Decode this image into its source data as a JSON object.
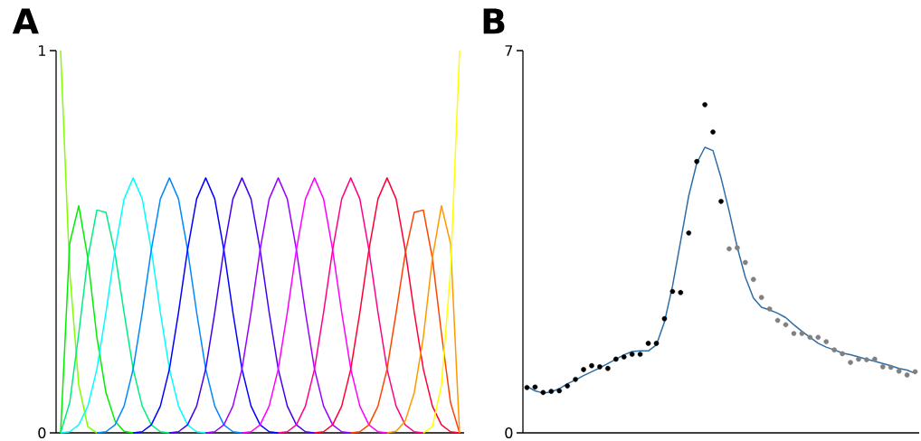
{
  "chart_data": [
    {
      "type": "line",
      "title": "A",
      "tick_labels": "y",
      "ylim": [
        0,
        1
      ],
      "yticks": [
        0,
        1
      ],
      "categories": [
        null,
        null,
        null,
        null,
        null,
        null,
        null,
        null,
        null,
        null,
        null,
        null,
        null,
        null,
        null,
        null,
        null,
        null,
        null,
        null,
        null,
        null,
        null,
        null,
        null,
        null,
        null,
        null,
        null,
        null,
        null,
        null,
        null,
        null,
        null,
        null,
        null,
        null,
        null,
        null,
        null,
        null,
        null,
        null,
        null
      ],
      "series": [
        {
          "color": "#80ff00",
          "values": [
            1,
            0.422,
            0.125,
            0.016,
            0,
            null,
            null,
            null,
            null,
            null,
            null,
            null,
            null,
            null,
            null,
            null,
            null,
            null,
            null,
            null,
            null,
            null,
            null,
            null,
            null,
            null,
            null,
            null,
            null,
            null,
            null,
            null,
            null,
            null,
            null,
            null,
            null,
            null,
            null,
            null,
            null,
            null,
            null,
            null,
            null
          ]
        },
        {
          "color": "#00ee00",
          "values": [
            0,
            0.496,
            0.594,
            0.457,
            0.25,
            0.105,
            0.031,
            0.004,
            0,
            null,
            null,
            null,
            null,
            null,
            null,
            null,
            null,
            null,
            null,
            null,
            null,
            null,
            null,
            null,
            null,
            null,
            null,
            null,
            null,
            null,
            null,
            null,
            null,
            null,
            null,
            null,
            null,
            null,
            null,
            null,
            null,
            null,
            null,
            null,
            null
          ]
        },
        {
          "color": "#00ee80",
          "values": [
            0,
            0.079,
            0.26,
            0.457,
            0.583,
            0.577,
            0.469,
            0.314,
            0.167,
            0.07,
            0.021,
            0.003,
            0,
            null,
            null,
            null,
            null,
            null,
            null,
            null,
            null,
            null,
            null,
            null,
            null,
            null,
            null,
            null,
            null,
            null,
            null,
            null,
            null,
            null,
            null,
            null,
            null,
            null,
            null,
            null,
            null,
            null,
            null,
            null,
            null
          ]
        },
        {
          "color": "#00ffff",
          "values": [
            0,
            0.003,
            0.021,
            0.07,
            0.167,
            0.315,
            0.479,
            0.612,
            0.667,
            0.612,
            0.479,
            0.315,
            0.167,
            0.07,
            0.021,
            0.003,
            0,
            null,
            null,
            null,
            null,
            null,
            null,
            null,
            null,
            null,
            null,
            null,
            null,
            null,
            null,
            null,
            null,
            null,
            null,
            null,
            null,
            null,
            null,
            null,
            null,
            null,
            null,
            null,
            null
          ]
        },
        {
          "color": "#0088ff",
          "values": [
            null,
            null,
            null,
            null,
            0,
            0.003,
            0.021,
            0.07,
            0.167,
            0.315,
            0.479,
            0.612,
            0.667,
            0.612,
            0.479,
            0.315,
            0.167,
            0.07,
            0.021,
            0.003,
            0,
            null,
            null,
            null,
            null,
            null,
            null,
            null,
            null,
            null,
            null,
            null,
            null,
            null,
            null,
            null,
            null,
            null,
            null,
            null,
            null,
            null,
            null,
            null,
            null
          ]
        },
        {
          "color": "#0000ff",
          "values": [
            null,
            null,
            null,
            null,
            null,
            null,
            null,
            null,
            0,
            0.003,
            0.021,
            0.07,
            0.167,
            0.315,
            0.479,
            0.612,
            0.667,
            0.612,
            0.479,
            0.315,
            0.167,
            0.07,
            0.021,
            0.003,
            0,
            null,
            null,
            null,
            null,
            null,
            null,
            null,
            null,
            null,
            null,
            null,
            null,
            null,
            null,
            null,
            null,
            null,
            null,
            null,
            null
          ]
        },
        {
          "color": "#4400ee",
          "values": [
            null,
            null,
            null,
            null,
            null,
            null,
            null,
            null,
            null,
            null,
            null,
            null,
            0,
            0.003,
            0.021,
            0.07,
            0.167,
            0.315,
            0.479,
            0.612,
            0.667,
            0.612,
            0.479,
            0.315,
            0.167,
            0.07,
            0.021,
            0.003,
            0,
            null,
            null,
            null,
            null,
            null,
            null,
            null,
            null,
            null,
            null,
            null,
            null,
            null,
            null,
            null,
            null
          ]
        },
        {
          "color": "#9900ff",
          "values": [
            null,
            null,
            null,
            null,
            null,
            null,
            null,
            null,
            null,
            null,
            null,
            null,
            null,
            null,
            null,
            null,
            0,
            0.003,
            0.021,
            0.07,
            0.167,
            0.315,
            0.479,
            0.612,
            0.667,
            0.612,
            0.479,
            0.315,
            0.167,
            0.07,
            0.021,
            0.003,
            0,
            null,
            null,
            null,
            null,
            null,
            null,
            null,
            null,
            null,
            null,
            null,
            null
          ]
        },
        {
          "color": "#ff00ff",
          "values": [
            null,
            null,
            null,
            null,
            null,
            null,
            null,
            null,
            null,
            null,
            null,
            null,
            null,
            null,
            null,
            null,
            null,
            null,
            null,
            null,
            0,
            0.003,
            0.021,
            0.07,
            0.167,
            0.315,
            0.479,
            0.612,
            0.667,
            0.612,
            0.479,
            0.315,
            0.167,
            0.07,
            0.021,
            0.003,
            0,
            null,
            null,
            null,
            null,
            null,
            null,
            null,
            null
          ]
        },
        {
          "color": "#ff0088",
          "values": [
            null,
            null,
            null,
            null,
            null,
            null,
            null,
            null,
            null,
            null,
            null,
            null,
            null,
            null,
            null,
            null,
            null,
            null,
            null,
            null,
            null,
            null,
            null,
            null,
            0,
            0.003,
            0.021,
            0.07,
            0.167,
            0.315,
            0.479,
            0.612,
            0.667,
            0.612,
            0.479,
            0.315,
            0.167,
            0.07,
            0.021,
            0.003,
            0,
            null,
            null,
            null,
            null
          ]
        },
        {
          "color": "#ff0033",
          "values": [
            null,
            null,
            null,
            null,
            null,
            null,
            null,
            null,
            null,
            null,
            null,
            null,
            null,
            null,
            null,
            null,
            null,
            null,
            null,
            null,
            null,
            null,
            null,
            null,
            null,
            null,
            null,
            null,
            0,
            0.003,
            0.021,
            0.07,
            0.167,
            0.315,
            0.479,
            0.612,
            0.667,
            0.612,
            0.479,
            0.315,
            0.167,
            0.07,
            0.021,
            0.003,
            0
          ]
        },
        {
          "color": "#ff4400",
          "values": [
            null,
            null,
            null,
            null,
            null,
            null,
            null,
            null,
            null,
            null,
            null,
            null,
            null,
            null,
            null,
            null,
            null,
            null,
            null,
            null,
            null,
            null,
            null,
            null,
            null,
            null,
            null,
            null,
            null,
            null,
            null,
            null,
            0,
            0.003,
            0.021,
            0.07,
            0.167,
            0.314,
            0.469,
            0.577,
            0.583,
            0.457,
            0.26,
            0.079,
            0
          ]
        },
        {
          "color": "#ff9900",
          "values": [
            null,
            null,
            null,
            null,
            null,
            null,
            null,
            null,
            null,
            null,
            null,
            null,
            null,
            null,
            null,
            null,
            null,
            null,
            null,
            null,
            null,
            null,
            null,
            null,
            null,
            null,
            null,
            null,
            null,
            null,
            null,
            null,
            null,
            null,
            null,
            null,
            0,
            0.004,
            0.031,
            0.105,
            0.25,
            0.457,
            0.594,
            0.496,
            0
          ]
        },
        {
          "color": "#ffff00",
          "values": [
            null,
            null,
            null,
            null,
            null,
            null,
            null,
            null,
            null,
            null,
            null,
            null,
            null,
            null,
            null,
            null,
            null,
            null,
            null,
            null,
            null,
            null,
            null,
            null,
            null,
            null,
            null,
            null,
            null,
            null,
            null,
            null,
            null,
            null,
            null,
            null,
            null,
            null,
            null,
            null,
            0,
            0.016,
            0.125,
            0.422,
            1
          ]
        }
      ]
    },
    {
      "type": "scatter",
      "title": "B",
      "tick_labels": "y",
      "ylim": [
        0,
        7
      ],
      "yticks": [
        0,
        7
      ],
      "marker": "circle",
      "categories": [
        null,
        null,
        null,
        null,
        null,
        null,
        null,
        null,
        null,
        null,
        null,
        null,
        null,
        null,
        null,
        null,
        null,
        null,
        null,
        null,
        null,
        null,
        null,
        null,
        null,
        null,
        null,
        null,
        null,
        null,
        null,
        null,
        null,
        null,
        null,
        null,
        null,
        null,
        null,
        null,
        null,
        null,
        null,
        null,
        null,
        null,
        null,
        null,
        null
      ],
      "series": [
        {
          "color": "#000000",
          "values": [
            0.83,
            0.84,
            0.74,
            0.76,
            0.77,
            0.86,
            0.98,
            1.16,
            1.23,
            1.21,
            1.18,
            1.35,
            1.39,
            1.44,
            1.44,
            1.64,
            1.64,
            2.09,
            2.59,
            2.57,
            3.66,
            4.97,
            6.01,
            5.51,
            4.24,
            null,
            null,
            null,
            null,
            null,
            null,
            null,
            null,
            null,
            null,
            null,
            null,
            null,
            null,
            null,
            null,
            null,
            null,
            null,
            null,
            null,
            null,
            null,
            null
          ]
        },
        {
          "color": "#808080",
          "values": [
            null,
            null,
            null,
            null,
            null,
            null,
            null,
            null,
            null,
            null,
            null,
            null,
            null,
            null,
            null,
            null,
            null,
            null,
            null,
            null,
            null,
            null,
            null,
            null,
            null,
            3.37,
            3.39,
            3.12,
            2.81,
            2.48,
            2.27,
            2.06,
            1.98,
            1.82,
            1.82,
            1.75,
            1.75,
            1.67,
            1.52,
            1.45,
            1.29,
            1.35,
            1.34,
            1.35,
            1.21,
            1.2,
            1.13,
            1.06,
            1.12
          ]
        },
        {
          "type": "line",
          "marker": "none",
          "color": "#2f6ea5",
          "values": [
            0.85,
            0.77,
            0.73,
            0.75,
            0.81,
            0.9,
            0.97,
            1.05,
            1.12,
            1.19,
            1.27,
            1.35,
            1.43,
            1.49,
            1.5,
            1.5,
            1.61,
            2.03,
            2.69,
            3.51,
            4.34,
            4.94,
            5.23,
            5.17,
            4.67,
            4.06,
            3.4,
            2.85,
            2.47,
            2.3,
            2.25,
            2.19,
            2.11,
            1.98,
            1.86,
            1.75,
            1.64,
            1.57,
            1.52,
            1.46,
            1.43,
            1.39,
            1.35,
            1.31,
            1.27,
            1.23,
            1.18,
            1.15,
            1.09
          ]
        }
      ]
    }
  ]
}
